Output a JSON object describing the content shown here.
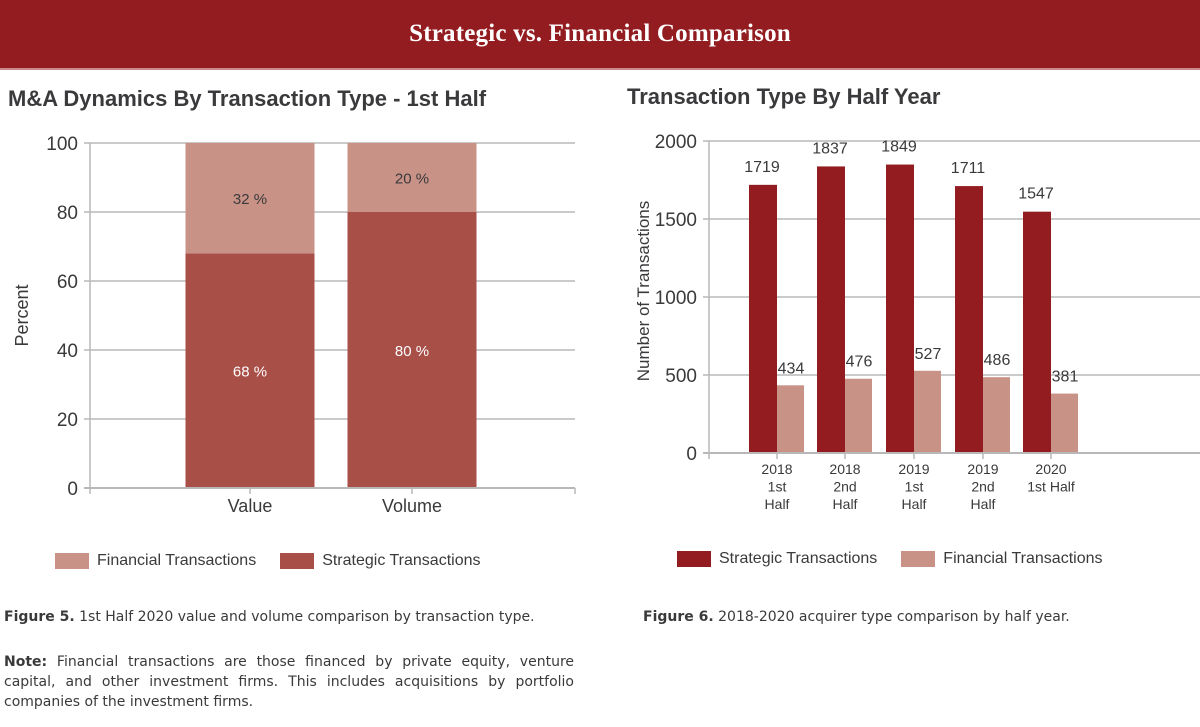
{
  "header": {
    "title": "Strategic vs. Financial Comparison"
  },
  "colors": {
    "header_bg": "#921c20",
    "strategic_left": "#a84f48",
    "financial_left": "#c99287",
    "strategic_right": "#921c20",
    "financial_right": "#c99287",
    "grid": "#b8b8b8",
    "text": "#3a3a3c"
  },
  "chart_data": [
    {
      "type": "bar",
      "stacked": true,
      "title": "M&A Dynamics By Transaction Type - 1st Half",
      "xlabel": "",
      "ylabel": "Percent",
      "ylim": [
        0,
        100
      ],
      "yticks": [
        0,
        20,
        40,
        60,
        80,
        100
      ],
      "categories": [
        "Value",
        "Volume"
      ],
      "series": [
        {
          "name": "Strategic Transactions",
          "values": [
            68,
            80
          ],
          "labels": [
            "68 %",
            "80 %"
          ]
        },
        {
          "name": "Financial Transactions",
          "values": [
            32,
            20
          ],
          "labels": [
            "32 %",
            "20 %"
          ]
        }
      ],
      "legend": [
        "Financial Transactions",
        "Strategic Transactions"
      ],
      "legend_position": "bottom",
      "grid": true
    },
    {
      "type": "bar",
      "stacked": false,
      "title": "Transaction Type By Half Year",
      "xlabel": "",
      "ylabel": "Number of Transactions",
      "ylim": [
        0,
        2000
      ],
      "yticks": [
        0,
        500,
        1000,
        1500,
        2000
      ],
      "categories": [
        [
          "2018",
          "1st",
          "Half"
        ],
        [
          "2018",
          "2nd",
          "Half"
        ],
        [
          "2019",
          "1st",
          "Half"
        ],
        [
          "2019",
          "2nd",
          "Half"
        ],
        [
          "2020",
          "1st Half"
        ]
      ],
      "series": [
        {
          "name": "Strategic Transactions",
          "values": [
            1719,
            1837,
            1849,
            1711,
            1547
          ]
        },
        {
          "name": "Financial Transactions",
          "values": [
            434,
            476,
            527,
            486,
            381
          ]
        }
      ],
      "legend": [
        "Strategic Transactions",
        "Financial Transactions"
      ],
      "legend_position": "bottom",
      "grid": true
    }
  ],
  "captions": {
    "fig5_label": "Figure 5.",
    "fig5_text": " 1st Half 2020 value and volume comparison by transaction type.",
    "note_label": "Note:",
    "note_text": " Financial transactions are those financed by private equity, venture capital, and other investment firms. This includes acquisitions by portfolio companies of the investment firms.",
    "fig6_label": "Figure 6.",
    "fig6_text": " 2018-2020 acquirer type comparison by half year."
  }
}
